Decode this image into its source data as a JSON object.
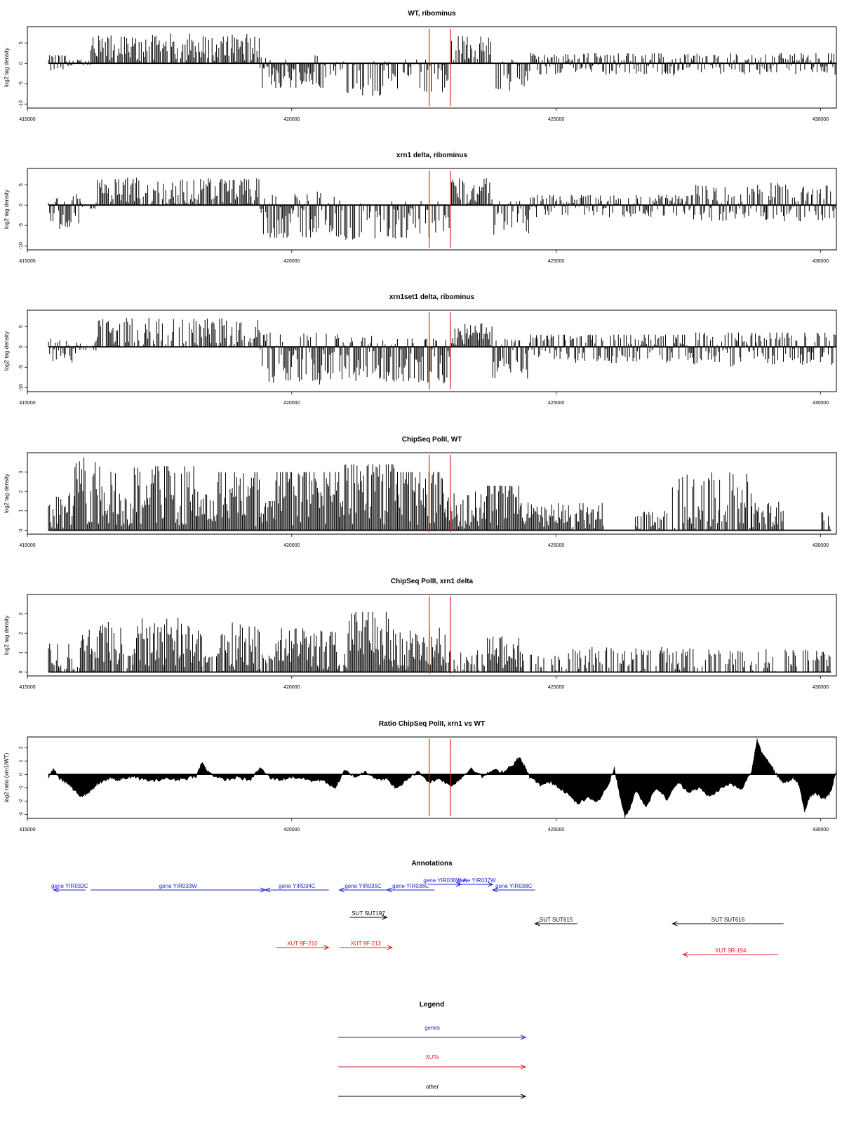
{
  "chart_data": [
    {
      "type": "bar",
      "title": "WT, ribominus",
      "ylabel": "log2 tag density",
      "xlabel": "",
      "xlim": [
        415000,
        430300
      ],
      "xticks": [
        "415000",
        "420000",
        "425000",
        "430000"
      ],
      "ylim": [
        -11,
        9
      ],
      "yticks": [
        "-10",
        "-5",
        "0",
        "5"
      ],
      "vlines": [
        422600,
        423000
      ],
      "segments": [
        {
          "x": [
            415400,
            415800
          ],
          "level": 0,
          "min": -3,
          "max": 2
        },
        {
          "x": [
            415800,
            416200
          ],
          "level": 0,
          "min": -0.5,
          "max": 1
        },
        {
          "x": [
            416200,
            419400
          ],
          "level": 3,
          "min": 0,
          "max": 7.5
        },
        {
          "x": [
            419400,
            420600
          ],
          "level": -2.5,
          "min": -6,
          "max": 2
        },
        {
          "x": [
            420600,
            421000
          ],
          "level": -1.5,
          "min": -4,
          "max": 0.5
        },
        {
          "x": [
            421000,
            422000
          ],
          "level": -4.5,
          "min": -8,
          "max": 0.5
        },
        {
          "x": [
            422000,
            423000
          ],
          "level": -3.5,
          "min": -7,
          "max": 1
        },
        {
          "x": [
            423000,
            423800
          ],
          "level": 3,
          "min": 0,
          "max": 7.5
        },
        {
          "x": [
            423800,
            424500
          ],
          "level": -2.5,
          "min": -7,
          "max": 1
        },
        {
          "x": [
            424500,
            430300
          ],
          "level": 0,
          "min": -3,
          "max": 2.5
        }
      ]
    },
    {
      "type": "bar",
      "title": "xrn1 delta, ribominus",
      "ylabel": "log2 tag density",
      "xlabel": "",
      "xlim": [
        415000,
        430300
      ],
      "xticks": [
        "415000",
        "420000",
        "425000",
        "430000"
      ],
      "ylim": [
        -11,
        9
      ],
      "yticks": [
        "-10",
        "-5",
        "0",
        "5"
      ],
      "vlines": [
        422600,
        423000
      ],
      "segments": [
        {
          "x": [
            415400,
            416000
          ],
          "level": -1.5,
          "min": -6,
          "max": 3
        },
        {
          "x": [
            416000,
            416300
          ],
          "level": 0,
          "min": -1,
          "max": 1
        },
        {
          "x": [
            416300,
            419400
          ],
          "level": 2.5,
          "min": 0,
          "max": 7
        },
        {
          "x": [
            419400,
            421000
          ],
          "level": -3,
          "min": -8,
          "max": 3.5
        },
        {
          "x": [
            421000,
            422000
          ],
          "level": -4.5,
          "min": -8.5,
          "max": 1
        },
        {
          "x": [
            422000,
            423000
          ],
          "level": -4,
          "min": -8,
          "max": 1
        },
        {
          "x": [
            423000,
            423800
          ],
          "level": 3,
          "min": 0,
          "max": 7
        },
        {
          "x": [
            423800,
            424500
          ],
          "level": -3,
          "min": -8,
          "max": 1
        },
        {
          "x": [
            424500,
            427600
          ],
          "level": 0,
          "min": -3,
          "max": 2.5
        },
        {
          "x": [
            427600,
            430300
          ],
          "level": 0.5,
          "min": -4,
          "max": 5.5
        }
      ]
    },
    {
      "type": "bar",
      "title": "xrn1set1 delta, ribominus",
      "ylabel": "log2 tag density",
      "xlabel": "",
      "xlim": [
        415000,
        430300
      ],
      "xticks": [
        "415000",
        "420000",
        "425000",
        "430000"
      ],
      "ylim": [
        -11,
        9
      ],
      "yticks": [
        "-10",
        "-5",
        "0",
        "5"
      ],
      "vlines": [
        422600,
        423000
      ],
      "segments": [
        {
          "x": [
            415400,
            416000
          ],
          "level": -1,
          "min": -4,
          "max": 2
        },
        {
          "x": [
            416000,
            416300
          ],
          "level": 0,
          "min": -1,
          "max": 1
        },
        {
          "x": [
            416300,
            419400
          ],
          "level": 2,
          "min": 0,
          "max": 7.5
        },
        {
          "x": [
            419400,
            421000
          ],
          "level": -3,
          "min": -9.5,
          "max": 3.5
        },
        {
          "x": [
            421000,
            422000
          ],
          "level": -3.5,
          "min": -8.5,
          "max": 3
        },
        {
          "x": [
            422000,
            423000
          ],
          "level": -3,
          "min": -10,
          "max": 2
        },
        {
          "x": [
            423000,
            423800
          ],
          "level": 3,
          "min": 0,
          "max": 6
        },
        {
          "x": [
            423800,
            424500
          ],
          "level": -3,
          "min": -9,
          "max": 2
        },
        {
          "x": [
            424500,
            427600
          ],
          "level": 0,
          "min": -4,
          "max": 3
        },
        {
          "x": [
            427600,
            430300
          ],
          "level": 0,
          "min": -5,
          "max": 3.5
        }
      ]
    },
    {
      "type": "bar",
      "title": "ChipSeq PolII, WT",
      "ylabel": "log2 tag density",
      "xlabel": "",
      "xlim": [
        415000,
        430300
      ],
      "xticks": [
        "415000",
        "420000",
        "425000",
        "430000"
      ],
      "ylim": [
        -0.2,
        4
      ],
      "yticks": [
        "0",
        "1",
        "2",
        "3"
      ],
      "vlines": [
        422600,
        423000
      ],
      "segments": [
        {
          "x": [
            415400,
            415900
          ],
          "level": 1,
          "min": 0,
          "max": 2
        },
        {
          "x": [
            415900,
            416700
          ],
          "level": 2,
          "min": 0,
          "max": 3.8
        },
        {
          "x": [
            416700,
            417000
          ],
          "level": 1,
          "min": 0,
          "max": 2
        },
        {
          "x": [
            417000,
            418200
          ],
          "level": 2,
          "min": 0,
          "max": 3.3
        },
        {
          "x": [
            418200,
            418600
          ],
          "level": 1,
          "min": 0,
          "max": 2
        },
        {
          "x": [
            418600,
            419400
          ],
          "level": 2,
          "min": 0,
          "max": 3
        },
        {
          "x": [
            419400,
            419700
          ],
          "level": 1,
          "min": 0,
          "max": 1.5
        },
        {
          "x": [
            419700,
            420900
          ],
          "level": 2,
          "min": 0,
          "max": 3
        },
        {
          "x": [
            420900,
            421000
          ],
          "level": 1,
          "min": 0,
          "max": 1.5
        },
        {
          "x": [
            421000,
            422000
          ],
          "level": 2.3,
          "min": 0,
          "max": 3.4
        },
        {
          "x": [
            422000,
            422900
          ],
          "level": 2,
          "min": 0,
          "max": 3
        },
        {
          "x": [
            422900,
            423700
          ],
          "level": 1,
          "min": 0,
          "max": 2
        },
        {
          "x": [
            423700,
            424300
          ],
          "level": 2,
          "min": 0,
          "max": 2.3
        },
        {
          "x": [
            424300,
            425900
          ],
          "level": 0.7,
          "min": 0,
          "max": 1.5
        },
        {
          "x": [
            426500,
            427100
          ],
          "level": 0.5,
          "min": 0,
          "max": 1
        },
        {
          "x": [
            427200,
            428700
          ],
          "level": 1,
          "min": 0,
          "max": 3
        },
        {
          "x": [
            428700,
            429300
          ],
          "level": 0.7,
          "min": 0,
          "max": 1.5
        },
        {
          "x": [
            430000,
            430200
          ],
          "level": 0.5,
          "min": 0,
          "max": 1
        }
      ]
    },
    {
      "type": "bar",
      "title": "ChipSeq PolII, xrn1 delta",
      "ylabel": "log2 tag density",
      "xlabel": "",
      "xlim": [
        415000,
        430300
      ],
      "xticks": [
        "415000",
        "420000",
        "425000",
        "430000"
      ],
      "ylim": [
        -0.2,
        4
      ],
      "yticks": [
        "0",
        "1",
        "2",
        "3"
      ],
      "vlines": [
        422600,
        423000
      ],
      "segments": [
        {
          "x": [
            415400,
            415800
          ],
          "level": 0.7,
          "min": 0,
          "max": 1.8
        },
        {
          "x": [
            415800,
            416000
          ],
          "level": 0.3,
          "min": 0,
          "max": 1
        },
        {
          "x": [
            416000,
            416800
          ],
          "level": 1.2,
          "min": 0,
          "max": 2.6
        },
        {
          "x": [
            416800,
            417000
          ],
          "level": 0.4,
          "min": 0,
          "max": 1
        },
        {
          "x": [
            417000,
            418300
          ],
          "level": 1.5,
          "min": 0,
          "max": 2.9
        },
        {
          "x": [
            418300,
            418600
          ],
          "level": 0.4,
          "min": 0,
          "max": 1
        },
        {
          "x": [
            418600,
            419400
          ],
          "level": 1.3,
          "min": 0,
          "max": 2.7
        },
        {
          "x": [
            419400,
            419700
          ],
          "level": 0.4,
          "min": 0,
          "max": 1
        },
        {
          "x": [
            419700,
            420900
          ],
          "level": 1.2,
          "min": 0,
          "max": 2.3
        },
        {
          "x": [
            420900,
            421000
          ],
          "level": 0.4,
          "min": 0,
          "max": 1
        },
        {
          "x": [
            421000,
            421900
          ],
          "level": 1.8,
          "min": 0,
          "max": 3.1
        },
        {
          "x": [
            421900,
            422900
          ],
          "level": 1.2,
          "min": 0,
          "max": 2.4
        },
        {
          "x": [
            422900,
            423700
          ],
          "level": 0.5,
          "min": 0,
          "max": 1.2
        },
        {
          "x": [
            423700,
            424300
          ],
          "level": 1,
          "min": 0,
          "max": 1.9
        },
        {
          "x": [
            424300,
            425000
          ],
          "level": 0.4,
          "min": 0,
          "max": 1.1
        },
        {
          "x": [
            425000,
            430200
          ],
          "level": 0.15,
          "min": 0,
          "max": 1.3
        }
      ]
    },
    {
      "type": "area",
      "title": "Ratio ChipSeq PolII, xrn1 vs WT",
      "ylabel": "log2 ratio (xrn1/WT)",
      "xlabel": "",
      "xlim": [
        415000,
        430300
      ],
      "xticks": [
        "415000",
        "420000",
        "425000",
        "430000"
      ],
      "ylim": [
        -3.3,
        2.8
      ],
      "yticks": [
        "-3",
        "-2",
        "-1",
        "0",
        "1",
        "2"
      ],
      "vlines": [
        422600,
        423000
      ],
      "x": [
        415400,
        415500,
        415600,
        415700,
        415800,
        415900,
        416000,
        416100,
        416200,
        416300,
        416400,
        416500,
        416600,
        416700,
        416800,
        417000,
        417200,
        417400,
        417600,
        417800,
        418000,
        418200,
        418300,
        418400,
        418600,
        418800,
        419000,
        419200,
        419400,
        419600,
        419800,
        420000,
        420200,
        420400,
        420600,
        420800,
        420900,
        421000,
        421200,
        421400,
        421600,
        421800,
        422000,
        422200,
        422400,
        422600,
        422800,
        423000,
        423200,
        423400,
        423600,
        423800,
        424000,
        424200,
        424300,
        424400,
        424500,
        424700,
        424900,
        425000,
        425200,
        425400,
        425600,
        425800,
        426000,
        426100,
        426200,
        426300,
        426400,
        426500,
        426700,
        426900,
        427100,
        427300,
        427500,
        427700,
        427900,
        428100,
        428300,
        428500,
        428700,
        428800,
        428900,
        429000,
        429100,
        429200,
        429300,
        429400,
        429500,
        429600,
        429700,
        429800,
        429900,
        430000,
        430100,
        430200,
        430300
      ],
      "y": [
        -0.2,
        0.4,
        -0.3,
        -0.5,
        -0.8,
        -1.3,
        -1.6,
        -1.5,
        -1.2,
        -0.8,
        -0.6,
        -0.4,
        -0.2,
        -0.5,
        -0.3,
        -0.2,
        -0.4,
        -0.5,
        -0.3,
        -0.4,
        -0.3,
        -0.1,
        0.9,
        0.3,
        -0.3,
        -0.4,
        -0.2,
        -0.5,
        0.5,
        -0.3,
        -0.4,
        -0.2,
        -0.3,
        -0.5,
        -0.4,
        -1.1,
        -0.5,
        0.3,
        -0.2,
        0.2,
        -0.3,
        -0.4,
        -1.1,
        -0.3,
        0.2,
        -0.6,
        -0.3,
        -0.9,
        -0.3,
        0.5,
        -0.2,
        0.3,
        0.2,
        0.8,
        1.3,
        0.6,
        -0.2,
        -0.8,
        -0.6,
        -0.8,
        -1.4,
        -2.2,
        -1.8,
        -2.0,
        -0.7,
        0.5,
        -1.5,
        -3.2,
        -2.5,
        -1.2,
        -2.4,
        -1.0,
        -1.9,
        -0.6,
        -1.3,
        -1.0,
        -1.7,
        -1.1,
        -0.7,
        -1.2,
        0.3,
        2.6,
        1.6,
        1.0,
        0.4,
        -0.2,
        -0.6,
        -0.5,
        -0.3,
        -0.8,
        -2.8,
        -1.6,
        -1.4,
        -1.7,
        -1.8,
        -1.3,
        0.4
      ]
    }
  ],
  "annotations": {
    "title": "Annotations",
    "xlim": [
      415000,
      430300
    ],
    "genes": [
      {
        "label": "gene YIR032C",
        "x1": 415500,
        "x2": 416100,
        "dir": "left",
        "row": 0
      },
      {
        "label": "gene YIR033W",
        "x1": 416200,
        "x2": 419500,
        "dir": "right",
        "row": 0
      },
      {
        "label": "gene YIR034C",
        "x1": 419500,
        "x2": 420700,
        "dir": "left",
        "row": 0
      },
      {
        "label": "gene YIR035C",
        "x1": 420900,
        "x2": 421800,
        "dir": "left",
        "row": 0
      },
      {
        "label": "gene YIR036C",
        "x1": 421800,
        "x2": 422700,
        "dir": "left",
        "row": 0
      },
      {
        "label": "gene YIR036W-A",
        "x1": 422600,
        "x2": 423200,
        "dir": "right",
        "row": 1
      },
      {
        "label": "gene YIR037W",
        "x1": 423200,
        "x2": 423800,
        "dir": "right",
        "row": 1
      },
      {
        "label": "gene YIR038C",
        "x1": 423800,
        "x2": 424600,
        "dir": "left",
        "row": 0
      }
    ],
    "others": [
      {
        "label": "SUT SUT197",
        "x1": 421100,
        "x2": 421800,
        "dir": "right",
        "row": 0
      },
      {
        "label": "SUT SUT615",
        "x1": 424600,
        "x2": 425400,
        "dir": "left",
        "row": 1
      },
      {
        "label": "SUT SUT616",
        "x1": 427200,
        "x2": 429300,
        "dir": "left",
        "row": 1
      }
    ],
    "xuts": [
      {
        "label": "XUT 9F-210",
        "x1": 419700,
        "x2": 420700,
        "dir": "right",
        "row": 0
      },
      {
        "label": "XUT 9F-213",
        "x1": 420900,
        "x2": 421900,
        "dir": "right",
        "row": 0
      },
      {
        "label": "XUT 9R-194",
        "x1": 427400,
        "x2": 429200,
        "dir": "left",
        "row": 1
      }
    ]
  },
  "legend": {
    "title": "Legend",
    "items": [
      {
        "label": "genes",
        "color": "#1f1fd4"
      },
      {
        "label": "XUTs",
        "color": "#e81c1c"
      },
      {
        "label": "other",
        "color": "#000000"
      }
    ]
  },
  "colors": {
    "marker": "#e81c1c",
    "gene": "#1f1fd4",
    "xut": "#e81c1c",
    "other": "#000000",
    "bar": "#000000"
  }
}
